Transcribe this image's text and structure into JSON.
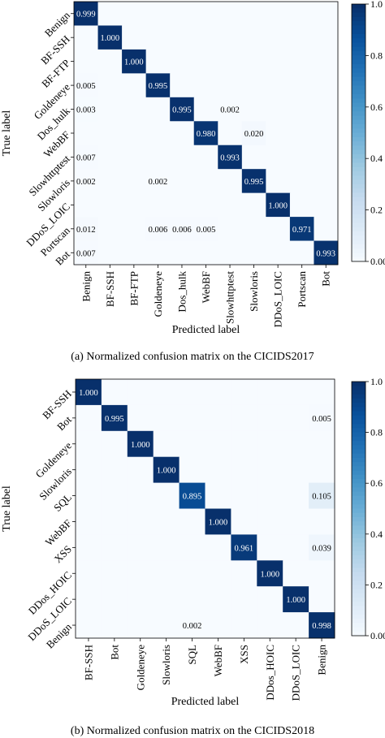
{
  "chart_data": [
    {
      "type": "heatmap",
      "title": "",
      "xlabel": "Predicted label",
      "ylabel": "True label",
      "labels": [
        "Benign",
        "BF-SSH",
        "BF-FTP",
        "Goldeneye",
        "Dos_hulk",
        "WebBF",
        "Slowhttptest",
        "Slowloris",
        "DDoS_LOIC",
        "Portscan",
        "Bot"
      ],
      "matrix": [
        [
          0.999,
          0,
          0,
          0,
          0,
          0,
          0,
          0,
          0,
          0,
          0
        ],
        [
          0,
          1.0,
          0,
          0,
          0,
          0,
          0,
          0,
          0,
          0,
          0
        ],
        [
          0,
          0,
          1.0,
          0,
          0,
          0,
          0,
          0,
          0,
          0,
          0
        ],
        [
          0.005,
          0,
          0,
          0.995,
          0,
          0,
          0,
          0,
          0,
          0,
          0
        ],
        [
          0.003,
          0,
          0,
          0,
          0.995,
          0,
          0.002,
          0,
          0,
          0,
          0
        ],
        [
          0,
          0,
          0,
          0,
          0,
          0.98,
          0,
          0.02,
          0,
          0,
          0
        ],
        [
          0.007,
          0,
          0,
          0,
          0,
          0,
          0.993,
          0,
          0,
          0,
          0
        ],
        [
          0.002,
          0,
          0,
          0.002,
          0,
          0,
          0,
          0.995,
          0,
          0,
          0
        ],
        [
          0,
          0,
          0,
          0,
          0,
          0,
          0,
          0,
          1.0,
          0,
          0
        ],
        [
          0.012,
          0,
          0,
          0.006,
          0.006,
          0.005,
          0,
          0,
          0,
          0.971,
          0
        ],
        [
          0.007,
          0,
          0,
          0,
          0,
          0,
          0,
          0,
          0,
          0,
          0.993
        ]
      ],
      "cell_labels": [
        [
          "0.999",
          "",
          "",
          "",
          "",
          "",
          "",
          "",
          "",
          "",
          ""
        ],
        [
          "",
          "1.000",
          "",
          "",
          "",
          "",
          "",
          "",
          "",
          "",
          ""
        ],
        [
          "",
          "",
          "1.000",
          "",
          "",
          "",
          "",
          "",
          "",
          "",
          ""
        ],
        [
          "0.005",
          "",
          "",
          "0.995",
          "",
          "",
          "",
          "",
          "",
          "",
          ""
        ],
        [
          "0.003",
          "",
          "",
          "",
          "0.995",
          "",
          "0.002",
          "",
          "",
          "",
          ""
        ],
        [
          "",
          "",
          "",
          "",
          "",
          "0.980",
          "",
          "0.020",
          "",
          "",
          ""
        ],
        [
          "0.007",
          "",
          "",
          "",
          "",
          "",
          "0.993",
          "",
          "",
          "",
          ""
        ],
        [
          "0.002",
          "",
          "",
          "0.002",
          "",
          "",
          "",
          "0.995",
          "",
          "",
          ""
        ],
        [
          "",
          "",
          "",
          "",
          "",
          "",
          "",
          "",
          "1.000",
          "",
          ""
        ],
        [
          "0.012",
          "",
          "",
          "0.006",
          "0.006",
          "0.005",
          "",
          "",
          "",
          "0.971",
          ""
        ],
        [
          "0.007",
          "",
          "",
          "",
          "",
          "",
          "",
          "",
          "",
          "",
          "0.993"
        ]
      ],
      "colorbar": {
        "range": [
          0,
          1.0
        ],
        "ticks": [
          "0.00",
          "0.2",
          "0.4",
          "0.6",
          "0.8",
          "1.0"
        ],
        "colormap": "Blues"
      },
      "caption": "(a) Normalized confusion matrix on the CICIDS2017"
    },
    {
      "type": "heatmap",
      "title": "",
      "xlabel": "Predicted label",
      "ylabel": "True label",
      "labels": [
        "BF-SSH",
        "Bot",
        "Goldeneye",
        "Slowloris",
        "SQL",
        "WebBF",
        "XSS",
        "DDos_HOIC",
        "DDoS_LOIC",
        "Benign"
      ],
      "matrix": [
        [
          1.0,
          0,
          0,
          0,
          0,
          0,
          0,
          0,
          0,
          0
        ],
        [
          0,
          0.995,
          0,
          0,
          0,
          0,
          0,
          0,
          0,
          0.005
        ],
        [
          0,
          0,
          1.0,
          0,
          0,
          0,
          0,
          0,
          0,
          0
        ],
        [
          0,
          0,
          0,
          1.0,
          0,
          0,
          0,
          0,
          0,
          0
        ],
        [
          0,
          0,
          0,
          0,
          0.895,
          0,
          0,
          0,
          0,
          0.105
        ],
        [
          0,
          0,
          0,
          0,
          0,
          1.0,
          0,
          0,
          0,
          0
        ],
        [
          0,
          0,
          0,
          0,
          0,
          0,
          0.961,
          0,
          0,
          0.039
        ],
        [
          0,
          0,
          0,
          0,
          0,
          0,
          0,
          1.0,
          0,
          0
        ],
        [
          0,
          0,
          0,
          0,
          0,
          0,
          0,
          0,
          1.0,
          0
        ],
        [
          0,
          0,
          0,
          0,
          0.002,
          0,
          0,
          0,
          0,
          0.998
        ]
      ],
      "cell_labels": [
        [
          "1.000",
          "",
          "",
          "",
          "",
          "",
          "",
          "",
          "",
          ""
        ],
        [
          "",
          "0.995",
          "",
          "",
          "",
          "",
          "",
          "",
          "",
          "0.005"
        ],
        [
          "",
          "",
          "1.000",
          "",
          "",
          "",
          "",
          "",
          "",
          ""
        ],
        [
          "",
          "",
          "",
          "1.000",
          "",
          "",
          "",
          "",
          "",
          ""
        ],
        [
          "",
          "",
          "",
          "",
          "0.895",
          "",
          "",
          "",
          "",
          "0.105"
        ],
        [
          "",
          "",
          "",
          "",
          "",
          "1.000",
          "",
          "",
          "",
          ""
        ],
        [
          "",
          "",
          "",
          "",
          "",
          "",
          "0.961",
          "",
          "",
          "0.039"
        ],
        [
          "",
          "",
          "",
          "",
          "",
          "",
          "",
          "1.000",
          "",
          ""
        ],
        [
          "",
          "",
          "",
          "",
          "",
          "",
          "",
          "",
          "1.000",
          ""
        ],
        [
          "",
          "",
          "",
          "",
          "0.002",
          "",
          "",
          "",
          "",
          "0.998"
        ]
      ],
      "colorbar": {
        "range": [
          0,
          1.0
        ],
        "ticks": [
          "0.00",
          "0.2",
          "0.4",
          "0.6",
          "0.8",
          "1.0"
        ],
        "colormap": "Blues"
      },
      "caption": "(b) Normalized confusion matrix on the CICIDS2018"
    }
  ]
}
